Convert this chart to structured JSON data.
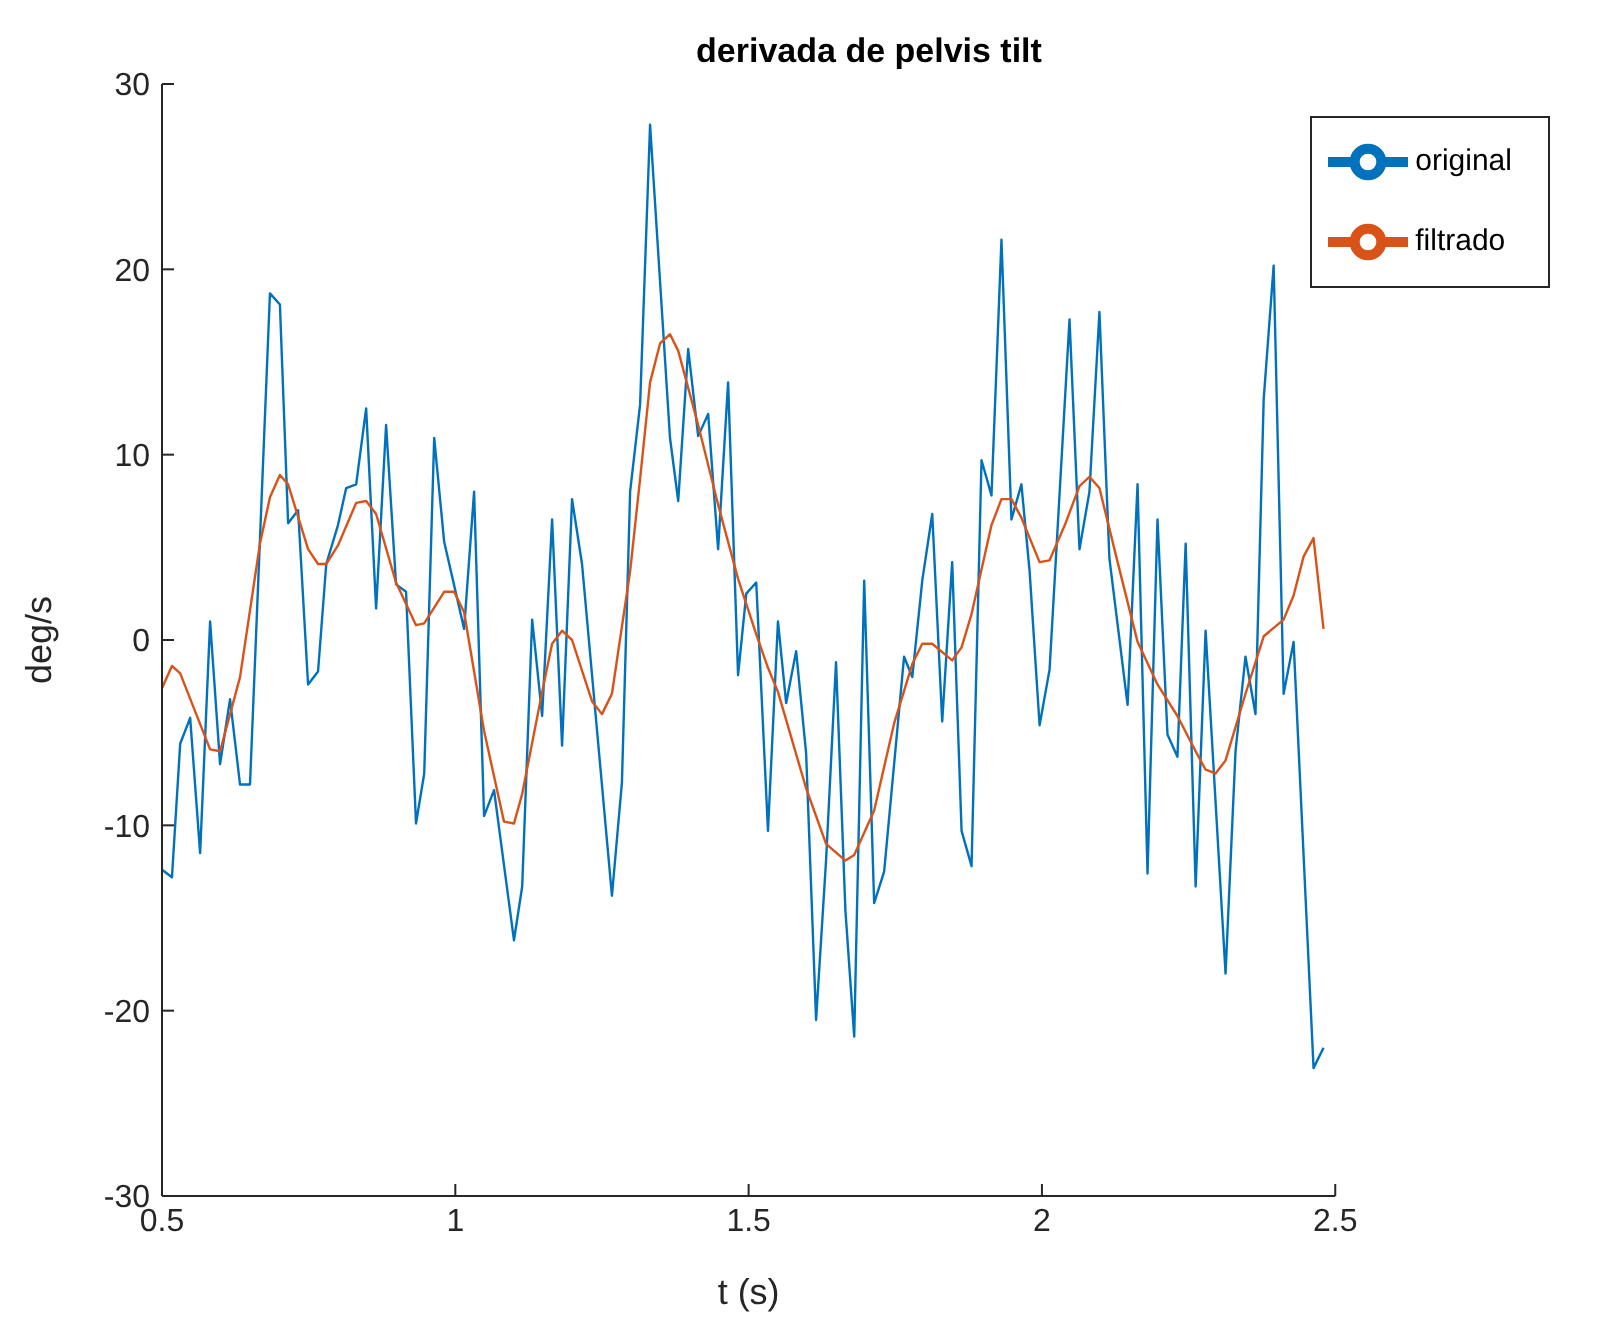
{
  "chart_data": {
    "type": "line",
    "title": "derivada de pelvis tilt",
    "xlabel": "t (s)",
    "ylabel": "deg/s",
    "xlim": [
      0.5,
      2.5
    ],
    "xticks": [
      0.5,
      1,
      1.5,
      2,
      2.5
    ],
    "ylim": [
      -30,
      30
    ],
    "yticks": [
      -30,
      -20,
      -10,
      0,
      10,
      20,
      30
    ],
    "grid": false,
    "legend": "top right",
    "marker": "none",
    "line_style": "solid",
    "series": [
      {
        "name": "original",
        "color": "#0072bd",
        "x": [
          0.5,
          0.517,
          0.531,
          0.548,
          0.565,
          0.582,
          0.599,
          0.616,
          0.633,
          0.65,
          0.684,
          0.701,
          0.715,
          0.732,
          0.749,
          0.766,
          0.78,
          0.8,
          0.814,
          0.831,
          0.848,
          0.865,
          0.882,
          0.899,
          0.916,
          0.933,
          0.947,
          0.964,
          0.981,
          1.015,
          1.032,
          1.049,
          1.066,
          1.1,
          1.114,
          1.131,
          1.148,
          1.165,
          1.182,
          1.199,
          1.216,
          1.267,
          1.284,
          1.298,
          1.315,
          1.332,
          1.366,
          1.38,
          1.397,
          1.414,
          1.431,
          1.448,
          1.465,
          1.482,
          1.496,
          1.513,
          1.533,
          1.55,
          1.564,
          1.581,
          1.598,
          1.615,
          1.632,
          1.649,
          1.665,
          1.68,
          1.697,
          1.714,
          1.731,
          1.765,
          1.779,
          1.796,
          1.813,
          1.83,
          1.847,
          1.863,
          1.88,
          1.897,
          1.914,
          1.931,
          1.948,
          1.965,
          1.979,
          1.996,
          2.013,
          2.047,
          2.064,
          2.081,
          2.098,
          2.115,
          2.146,
          2.163,
          2.18,
          2.197,
          2.214,
          2.231,
          2.245,
          2.262,
          2.279,
          2.313,
          2.33,
          2.347,
          2.364,
          2.378,
          2.395,
          2.412,
          2.429,
          2.463,
          2.48
        ],
        "values": [
          -12.4,
          -12.8,
          -5.6,
          -4.2,
          -11.5,
          1.0,
          -6.7,
          -3.2,
          -7.8,
          -7.8,
          18.7,
          18.1,
          6.3,
          7.0,
          -2.4,
          -1.7,
          4.1,
          6.2,
          8.2,
          8.4,
          12.5,
          1.7,
          11.6,
          3.0,
          2.6,
          -9.9,
          -7.2,
          10.9,
          5.3,
          0.6,
          8.0,
          -9.5,
          -8.1,
          -16.2,
          -13.3,
          1.1,
          -4.1,
          6.5,
          -5.7,
          7.6,
          4.1,
          -13.8,
          -7.7,
          8.0,
          12.7,
          27.8,
          10.9,
          7.5,
          15.7,
          11.0,
          12.2,
          4.9,
          13.9,
          -1.9,
          2.5,
          3.1,
          -10.3,
          1.0,
          -3.4,
          -0.6,
          -6.1,
          -20.5,
          -11.9,
          -1.2,
          -14.6,
          -21.4,
          3.2,
          -14.2,
          -12.5,
          -0.9,
          -2.0,
          3.2,
          6.8,
          -4.4,
          4.2,
          -10.3,
          -12.2,
          9.7,
          7.8,
          21.6,
          6.5,
          8.4,
          3.7,
          -4.6,
          -1.6,
          17.3,
          4.9,
          8.0,
          17.7,
          4.4,
          -3.5,
          8.4,
          -12.6,
          6.5,
          -5.1,
          -6.3,
          5.2,
          -13.3,
          0.5,
          -18.0,
          -6.0,
          -0.9,
          -4.0,
          13.0,
          20.2,
          -2.9,
          -0.1,
          -23.1,
          -22.0
        ]
      },
      {
        "name": "filtrado",
        "color": "#d95319",
        "x": [
          0.5,
          0.517,
          0.531,
          0.582,
          0.599,
          0.633,
          0.667,
          0.684,
          0.701,
          0.715,
          0.749,
          0.766,
          0.78,
          0.8,
          0.831,
          0.848,
          0.865,
          0.899,
          0.933,
          0.947,
          0.981,
          0.998,
          1.015,
          1.049,
          1.083,
          1.1,
          1.114,
          1.148,
          1.165,
          1.182,
          1.199,
          1.233,
          1.25,
          1.267,
          1.298,
          1.315,
          1.332,
          1.349,
          1.366,
          1.38,
          1.414,
          1.448,
          1.482,
          1.513,
          1.533,
          1.55,
          1.598,
          1.632,
          1.665,
          1.68,
          1.714,
          1.748,
          1.779,
          1.796,
          1.813,
          1.847,
          1.863,
          1.88,
          1.914,
          1.931,
          1.948,
          1.965,
          1.996,
          2.013,
          2.039,
          2.064,
          2.081,
          2.098,
          2.129,
          2.163,
          2.197,
          2.231,
          2.262,
          2.279,
          2.296,
          2.313,
          2.347,
          2.378,
          2.412,
          2.429,
          2.446,
          2.463,
          2.48
        ],
        "values": [
          -2.6,
          -1.4,
          -1.8,
          -5.9,
          -6.0,
          -2.0,
          5.2,
          7.7,
          8.9,
          8.4,
          4.9,
          4.1,
          4.1,
          5.1,
          7.4,
          7.5,
          6.8,
          3.1,
          0.8,
          0.9,
          2.6,
          2.6,
          1.5,
          -4.9,
          -9.8,
          -9.9,
          -8.3,
          -2.8,
          -0.2,
          0.5,
          0.0,
          -3.3,
          -4.0,
          -2.9,
          3.7,
          8.7,
          13.9,
          16.0,
          16.5,
          15.6,
          11.6,
          7.3,
          3.3,
          0.3,
          -1.5,
          -2.8,
          -8.0,
          -11.0,
          -11.9,
          -11.6,
          -9.2,
          -4.5,
          -1.3,
          -0.2,
          -0.2,
          -1.1,
          -0.4,
          1.4,
          6.2,
          7.6,
          7.6,
          6.6,
          4.2,
          4.3,
          6.2,
          8.3,
          8.8,
          8.2,
          4.2,
          -0.1,
          -2.4,
          -4.1,
          -6.0,
          -7.0,
          -7.2,
          -6.5,
          -2.9,
          0.2,
          1.1,
          2.4,
          4.5,
          5.5,
          0.6
        ]
      }
    ]
  }
}
